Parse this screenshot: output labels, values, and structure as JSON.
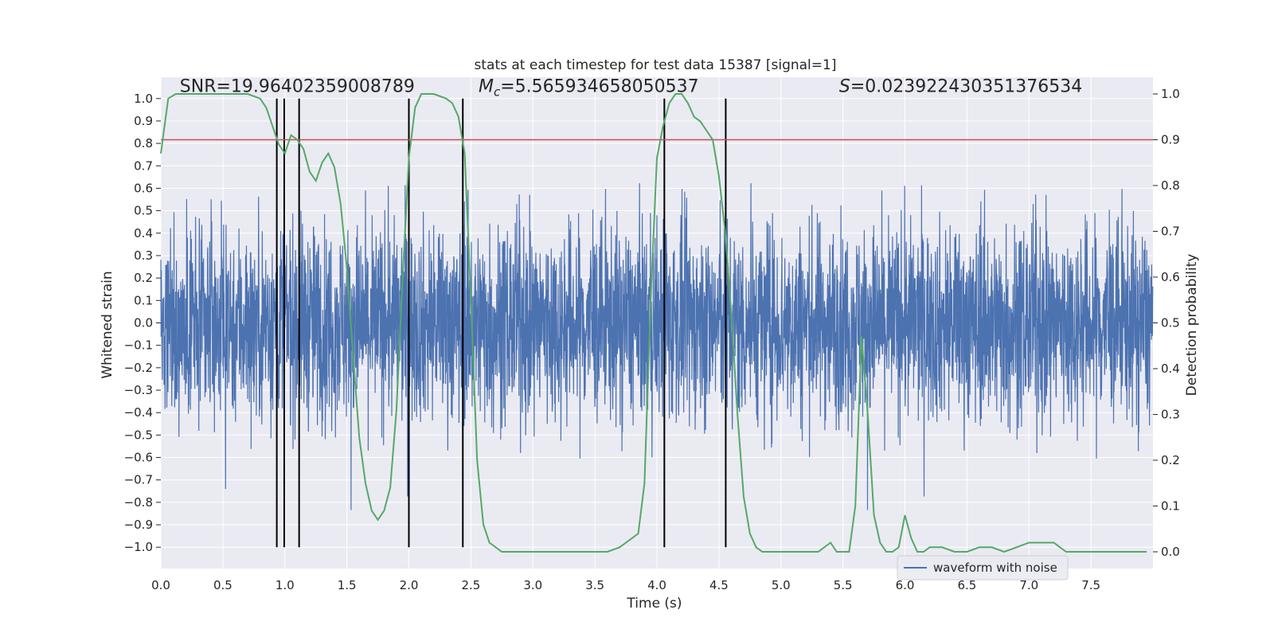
{
  "chart_data": {
    "type": "line",
    "title": "stats at each timestep for test data 15387 [signal=1]",
    "xlabel": "Time (s)",
    "ylabel": "Whitened strain",
    "y2label": "Detection probability",
    "xlim": [
      0.0,
      8.0
    ],
    "ylim": [
      -1.095,
      1.095
    ],
    "y2lim": [
      -0.0365,
      1.0365
    ],
    "xticks": [
      0.0,
      0.5,
      1.0,
      1.5,
      2.0,
      2.5,
      3.0,
      3.5,
      4.0,
      4.5,
      5.0,
      5.5,
      6.0,
      6.5,
      7.0,
      7.5
    ],
    "xtick_labels": [
      "0.0",
      "0.5",
      "1.0",
      "1.5",
      "2.0",
      "2.5",
      "3.0",
      "3.5",
      "4.0",
      "4.5",
      "5.0",
      "5.5",
      "6.0",
      "6.5",
      "7.0",
      "7.5"
    ],
    "yticks": [
      -1.0,
      -0.9,
      -0.8,
      -0.7,
      -0.6,
      -0.5,
      -0.4,
      -0.3,
      -0.2,
      -0.1,
      0.0,
      0.1,
      0.2,
      0.3,
      0.4,
      0.5,
      0.6,
      0.7,
      0.8,
      0.9,
      1.0
    ],
    "ytick_labels": [
      "−1.0",
      "−0.9",
      "−0.8",
      "−0.7",
      "−0.6",
      "−0.5",
      "−0.4",
      "−0.3",
      "−0.2",
      "−0.1",
      "0.0",
      "0.1",
      "0.2",
      "0.3",
      "0.4",
      "0.5",
      "0.6",
      "0.7",
      "0.8",
      "0.9",
      "1.0"
    ],
    "y2ticks": [
      0.0,
      0.1,
      0.2,
      0.3,
      0.4,
      0.5,
      0.6,
      0.7,
      0.8,
      0.9,
      1.0
    ],
    "y2tick_labels": [
      "0.0",
      "0.1",
      "0.2",
      "0.3",
      "0.4",
      "0.5",
      "0.6",
      "0.7",
      "0.8",
      "0.9",
      "1.0"
    ],
    "grid": true,
    "annotations": [
      {
        "text": "SNR=19.96402359008789",
        "x": 1.1,
        "y": 1.03
      },
      {
        "text": "=5.565934658050537",
        "math_prefix": "M",
        "math_sub": "c",
        "x": 3.45,
        "y": 1.03
      },
      {
        "text": "=0.023922430351376534",
        "math_prefix": "S",
        "x": 6.45,
        "y": 1.03
      }
    ],
    "series": [
      {
        "name": "waveform with noise",
        "color": "#4c72b0",
        "axis": "left",
        "style": "dense noisy waveform, typical envelope ~ ±0.4, spikes to ±1.0",
        "envelope": {
          "typical_amplitude": 0.4,
          "max_amplitude": 1.0,
          "sample_rate_hz": 2048
        }
      },
      {
        "name": "detection probability",
        "color": "#55a868",
        "axis": "right",
        "x": [
          0.0,
          0.06,
          0.12,
          0.2,
          0.3,
          0.4,
          0.5,
          0.6,
          0.7,
          0.8,
          0.85,
          0.9,
          0.95,
          1.0,
          1.05,
          1.1,
          1.15,
          1.2,
          1.25,
          1.3,
          1.35,
          1.4,
          1.45,
          1.5,
          1.55,
          1.6,
          1.65,
          1.7,
          1.75,
          1.8,
          1.85,
          1.9,
          1.95,
          2.0,
          2.05,
          2.1,
          2.15,
          2.2,
          2.3,
          2.35,
          2.4,
          2.45,
          2.5,
          2.55,
          2.6,
          2.65,
          2.7,
          2.75,
          2.8,
          2.9,
          3.0,
          3.1,
          3.2,
          3.3,
          3.4,
          3.5,
          3.6,
          3.7,
          3.75,
          3.8,
          3.85,
          3.9,
          3.95,
          4.0,
          4.05,
          4.1,
          4.15,
          4.2,
          4.25,
          4.3,
          4.35,
          4.4,
          4.45,
          4.5,
          4.55,
          4.6,
          4.65,
          4.7,
          4.75,
          4.8,
          4.85,
          4.9,
          4.95,
          5.0,
          5.1,
          5.2,
          5.3,
          5.4,
          5.45,
          5.5,
          5.55,
          5.6,
          5.65,
          5.7,
          5.75,
          5.8,
          5.85,
          5.9,
          5.95,
          6.0,
          6.05,
          6.1,
          6.15,
          6.2,
          6.25,
          6.3,
          6.4,
          6.5,
          6.6,
          6.7,
          6.8,
          6.9,
          7.0,
          7.05,
          7.1,
          7.15,
          7.2,
          7.25,
          7.3,
          7.4,
          7.5,
          7.6,
          7.7,
          7.8,
          7.9,
          7.95
        ],
        "values": [
          0.87,
          0.99,
          1.0,
          1.0,
          1.0,
          1.0,
          1.0,
          1.0,
          1.0,
          0.99,
          0.97,
          0.93,
          0.89,
          0.87,
          0.91,
          0.9,
          0.88,
          0.83,
          0.81,
          0.85,
          0.87,
          0.84,
          0.76,
          0.62,
          0.43,
          0.25,
          0.15,
          0.09,
          0.07,
          0.09,
          0.14,
          0.31,
          0.6,
          0.86,
          0.97,
          1.0,
          1.0,
          1.0,
          0.99,
          0.98,
          0.95,
          0.87,
          0.55,
          0.2,
          0.06,
          0.02,
          0.01,
          0.0,
          0.0,
          0.0,
          0.0,
          0.0,
          0.0,
          0.0,
          0.0,
          0.0,
          0.0,
          0.01,
          0.02,
          0.03,
          0.04,
          0.15,
          0.55,
          0.86,
          0.93,
          0.98,
          1.0,
          1.0,
          0.98,
          0.95,
          0.94,
          0.92,
          0.9,
          0.82,
          0.7,
          0.52,
          0.3,
          0.12,
          0.04,
          0.01,
          0.0,
          0.0,
          0.0,
          0.0,
          0.0,
          0.0,
          0.0,
          0.02,
          0.0,
          0.0,
          0.0,
          0.1,
          0.47,
          0.3,
          0.08,
          0.02,
          0.0,
          0.0,
          0.01,
          0.08,
          0.03,
          0.0,
          0.0,
          0.01,
          0.01,
          0.01,
          0.0,
          0.0,
          0.01,
          0.01,
          0.0,
          0.01,
          0.02,
          0.02,
          0.02,
          0.02,
          0.02,
          0.01,
          0.0,
          0.0,
          0.0,
          0.0,
          0.0,
          0.0,
          0.0,
          0.0
        ]
      },
      {
        "name": "threshold",
        "color": "#c44e52",
        "axis": "right",
        "value": 0.9
      }
    ],
    "vlines": {
      "color": "#000000",
      "x": [
        0.935,
        0.995,
        1.115,
        2.0,
        2.435,
        4.06,
        4.555
      ],
      "ymin": -1.0,
      "ymax": 1.0
    },
    "legend": {
      "entries": [
        "waveform with noise"
      ],
      "placement": "lower-right"
    }
  }
}
